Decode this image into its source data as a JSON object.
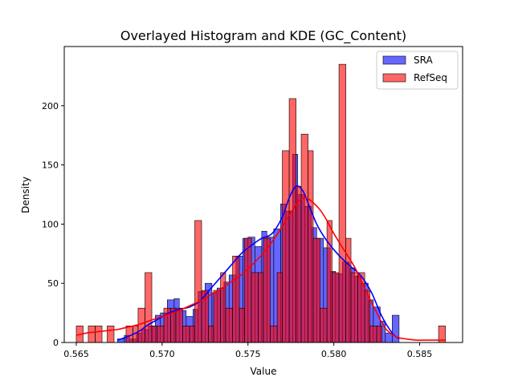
{
  "chart_data": {
    "type": "bar",
    "title": "Overlayed Histogram and KDE (GC_Content)",
    "xlabel": "Value",
    "ylabel": "Density",
    "xlim": [
      0.5643,
      0.5875
    ],
    "ylim": [
      0,
      250
    ],
    "xticks": [
      "0.565",
      "0.570",
      "0.575",
      "0.580",
      "0.585"
    ],
    "xtick_values": [
      0.565,
      0.57,
      0.575,
      0.58,
      0.585
    ],
    "yticks": [
      "0",
      "50",
      "100",
      "150",
      "200"
    ],
    "ytick_values": [
      0,
      50,
      100,
      150,
      200
    ],
    "grid": false,
    "legend_position": "top-right",
    "series": [
      {
        "name": "SRA",
        "kind": "histogram",
        "color": "#0000ff",
        "alpha": 0.6,
        "bins": [
          [
            0.5674,
            0.5678,
            3
          ],
          [
            0.5678,
            0.5681,
            6
          ],
          [
            0.5681,
            0.5685,
            3
          ],
          [
            0.5685,
            0.5688,
            8
          ],
          [
            0.5688,
            0.5692,
            11
          ],
          [
            0.5692,
            0.5696,
            14
          ],
          [
            0.5696,
            0.5699,
            23
          ],
          [
            0.5699,
            0.5703,
            25
          ],
          [
            0.5703,
            0.5707,
            36
          ],
          [
            0.5707,
            0.571,
            37
          ],
          [
            0.571,
            0.5714,
            27
          ],
          [
            0.5714,
            0.5718,
            22
          ],
          [
            0.5718,
            0.5721,
            28
          ],
          [
            0.5721,
            0.5725,
            43
          ],
          [
            0.5725,
            0.5729,
            50
          ],
          [
            0.5729,
            0.5732,
            42
          ],
          [
            0.5732,
            0.5736,
            46
          ],
          [
            0.5736,
            0.5739,
            51
          ],
          [
            0.5739,
            0.5743,
            57
          ],
          [
            0.5743,
            0.5747,
            73
          ],
          [
            0.5747,
            0.575,
            88
          ],
          [
            0.575,
            0.5754,
            89
          ],
          [
            0.5754,
            0.5758,
            81
          ],
          [
            0.5758,
            0.5761,
            94
          ],
          [
            0.5761,
            0.5765,
            89
          ],
          [
            0.5765,
            0.5769,
            96
          ],
          [
            0.5769,
            0.5772,
            117
          ],
          [
            0.5772,
            0.5776,
            111
          ],
          [
            0.5776,
            0.5779,
            159
          ],
          [
            0.5779,
            0.5783,
            125
          ],
          [
            0.5783,
            0.5787,
            115
          ],
          [
            0.5787,
            0.579,
            97
          ],
          [
            0.579,
            0.5794,
            88
          ],
          [
            0.5794,
            0.5798,
            80
          ],
          [
            0.5798,
            0.5801,
            60
          ],
          [
            0.5801,
            0.5805,
            58
          ],
          [
            0.5805,
            0.5809,
            68
          ],
          [
            0.5809,
            0.5812,
            63
          ],
          [
            0.5812,
            0.5816,
            56
          ],
          [
            0.5816,
            0.582,
            50
          ],
          [
            0.582,
            0.5823,
            36
          ],
          [
            0.5823,
            0.5827,
            30
          ],
          [
            0.5827,
            0.583,
            18
          ],
          [
            0.583,
            0.5834,
            8
          ],
          [
            0.5834,
            0.5838,
            23
          ]
        ]
      },
      {
        "name": "RefSeq",
        "kind": "histogram",
        "color": "#ff0000",
        "alpha": 0.6,
        "bins": [
          [
            0.565,
            0.5654,
            14
          ],
          [
            0.5654,
            0.5657,
            0
          ],
          [
            0.5657,
            0.5661,
            14
          ],
          [
            0.5661,
            0.5665,
            14
          ],
          [
            0.5665,
            0.5668,
            0
          ],
          [
            0.5668,
            0.5672,
            14
          ],
          [
            0.5672,
            0.5676,
            0
          ],
          [
            0.5676,
            0.5679,
            0
          ],
          [
            0.5679,
            0.5683,
            14
          ],
          [
            0.5683,
            0.5686,
            14
          ],
          [
            0.5686,
            0.569,
            29
          ],
          [
            0.569,
            0.5694,
            59
          ],
          [
            0.5694,
            0.5697,
            14
          ],
          [
            0.5697,
            0.5701,
            14
          ],
          [
            0.5701,
            0.5705,
            29
          ],
          [
            0.5705,
            0.5708,
            29
          ],
          [
            0.5708,
            0.5712,
            29
          ],
          [
            0.5712,
            0.5716,
            14
          ],
          [
            0.5716,
            0.5719,
            14
          ],
          [
            0.5719,
            0.5723,
            103
          ],
          [
            0.5723,
            0.5727,
            44
          ],
          [
            0.5727,
            0.573,
            14
          ],
          [
            0.573,
            0.5734,
            44
          ],
          [
            0.5734,
            0.5737,
            59
          ],
          [
            0.5737,
            0.5741,
            29
          ],
          [
            0.5741,
            0.5745,
            73
          ],
          [
            0.5745,
            0.5748,
            29
          ],
          [
            0.5748,
            0.5752,
            88
          ],
          [
            0.5752,
            0.5756,
            59
          ],
          [
            0.5756,
            0.5759,
            59
          ],
          [
            0.5759,
            0.5763,
            88
          ],
          [
            0.5763,
            0.5767,
            14
          ],
          [
            0.5767,
            0.577,
            59
          ],
          [
            0.577,
            0.5774,
            162
          ],
          [
            0.5774,
            0.5778,
            206
          ],
          [
            0.5778,
            0.5781,
            132
          ],
          [
            0.5781,
            0.5785,
            176
          ],
          [
            0.5785,
            0.5788,
            162
          ],
          [
            0.5788,
            0.5792,
            88
          ],
          [
            0.5792,
            0.5796,
            29
          ],
          [
            0.5796,
            0.5799,
            103
          ],
          [
            0.5799,
            0.5803,
            59
          ],
          [
            0.5803,
            0.5807,
            235
          ],
          [
            0.5807,
            0.581,
            88
          ],
          [
            0.581,
            0.5814,
            59
          ],
          [
            0.5814,
            0.5818,
            59
          ],
          [
            0.5818,
            0.5821,
            44
          ],
          [
            0.5821,
            0.5825,
            14
          ],
          [
            0.5825,
            0.5828,
            14
          ],
          [
            0.5828,
            0.5832,
            0
          ],
          [
            0.5832,
            0.5836,
            0
          ],
          [
            0.5836,
            0.5839,
            0
          ],
          [
            0.5839,
            0.5843,
            0
          ],
          [
            0.5843,
            0.5847,
            0
          ],
          [
            0.5847,
            0.585,
            0
          ],
          [
            0.585,
            0.5854,
            0
          ],
          [
            0.5854,
            0.5858,
            0
          ],
          [
            0.5858,
            0.5861,
            0
          ],
          [
            0.5861,
            0.5865,
            14
          ]
        ],
        "extra_bins": [
          [
            0.5792,
            0.5796,
            29
          ],
          [
            0.5828,
            0.5832,
            0
          ]
        ]
      }
    ],
    "kde": [
      {
        "name": "SRA",
        "color": "#0000ff",
        "x": [
          0.5674,
          0.568,
          0.5686,
          0.5692,
          0.5698,
          0.5704,
          0.571,
          0.5716,
          0.5722,
          0.5728,
          0.5734,
          0.574,
          0.5746,
          0.5752,
          0.5758,
          0.5764,
          0.577,
          0.5774,
          0.5778,
          0.5782,
          0.5786,
          0.579,
          0.5794,
          0.5798,
          0.5804,
          0.581,
          0.5816,
          0.5822,
          0.5828,
          0.5834,
          0.5838
        ],
        "y": [
          2,
          5,
          9,
          15,
          20,
          25,
          28,
          30,
          35,
          45,
          55,
          65,
          75,
          82,
          88,
          92,
          106,
          122,
          132,
          128,
          114,
          100,
          90,
          82,
          72,
          64,
          56,
          42,
          22,
          8,
          3
        ]
      },
      {
        "name": "RefSeq",
        "color": "#ff0000",
        "x": [
          0.565,
          0.5656,
          0.5662,
          0.5668,
          0.5674,
          0.568,
          0.5686,
          0.5692,
          0.5698,
          0.5704,
          0.571,
          0.5716,
          0.5722,
          0.5728,
          0.5734,
          0.574,
          0.5746,
          0.5752,
          0.5758,
          0.5764,
          0.577,
          0.5776,
          0.578,
          0.5784,
          0.5788,
          0.5792,
          0.5796,
          0.58,
          0.5806,
          0.5812,
          0.5818,
          0.5824,
          0.583,
          0.5836,
          0.5842,
          0.5848,
          0.5854,
          0.586,
          0.5865
        ],
        "y": [
          6,
          8,
          9,
          10,
          11,
          13,
          15,
          18,
          21,
          24,
          27,
          31,
          35,
          40,
          45,
          51,
          57,
          65,
          74,
          85,
          98,
          112,
          120,
          122,
          118,
          112,
          103,
          92,
          78,
          64,
          46,
          28,
          12,
          5,
          3,
          2,
          2,
          2,
          2
        ]
      }
    ]
  }
}
